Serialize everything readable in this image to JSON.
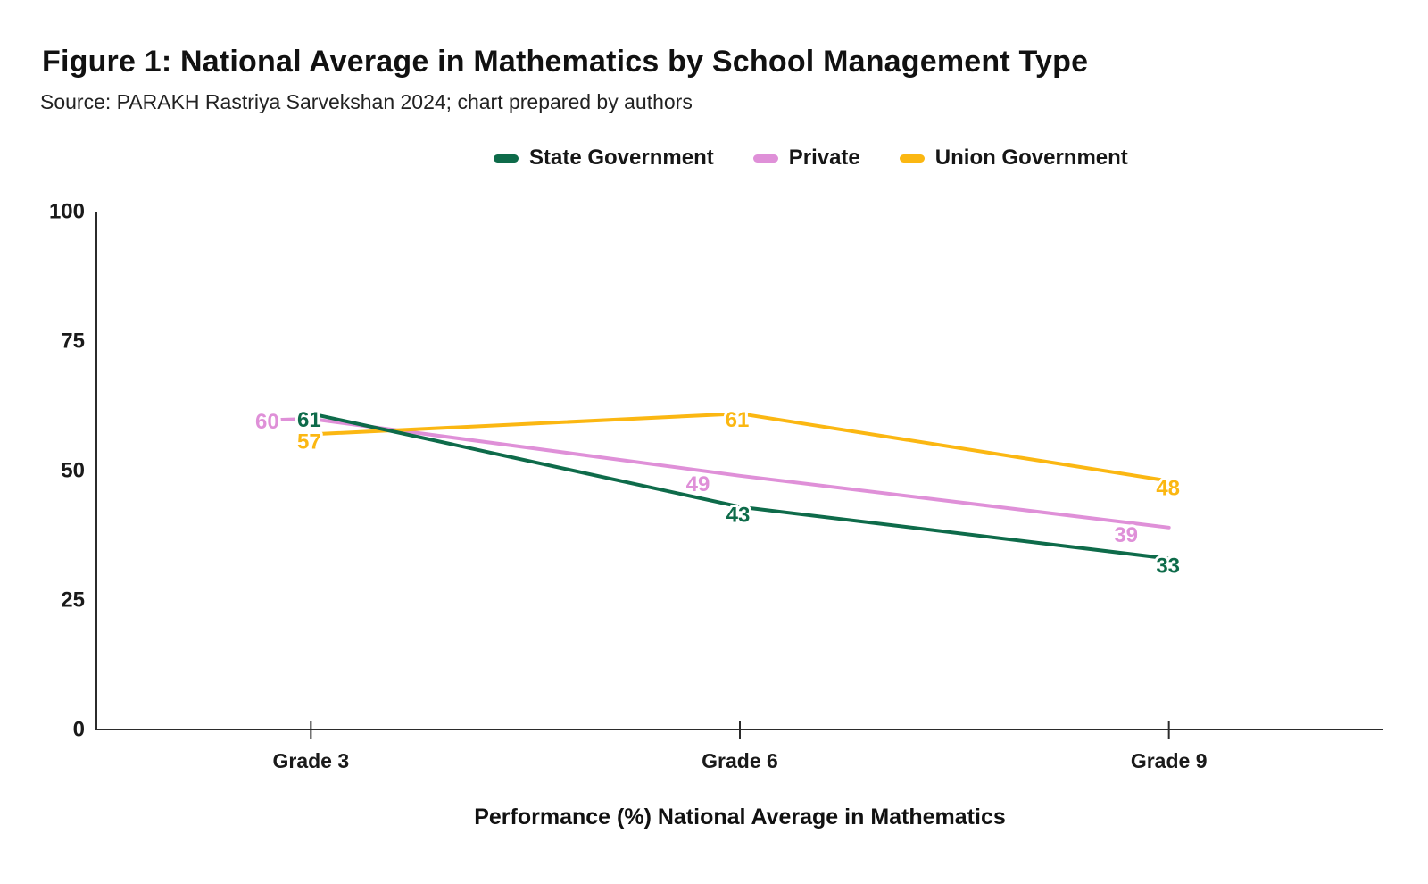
{
  "chart_data": {
    "type": "line",
    "title": "Figure 1: National Average in Mathematics by School Management Type",
    "source": "Source: PARAKH Rastriya Sarvekshan 2024; chart prepared by authors",
    "categories": [
      "Grade 3",
      "Grade 6",
      "Grade 9"
    ],
    "series": [
      {
        "name": "State Government",
        "color": "#0e6b4a",
        "values": [
          61,
          43,
          33
        ]
      },
      {
        "name": "Private",
        "color": "#df90d8",
        "values": [
          60,
          49,
          39
        ]
      },
      {
        "name": "Union Government",
        "color": "#fbb712",
        "values": [
          57,
          61,
          48
        ]
      }
    ],
    "xlabel": "Performance (%) National Average in Mathematics",
    "ylabel": "",
    "ylim": [
      0,
      100
    ],
    "yticks": [
      0,
      25,
      50,
      75,
      100
    ],
    "grid": false,
    "legend_position": "top",
    "data_labels": true,
    "axis_color": "#2b2b2b",
    "tick_label_color": "#1a1a1a",
    "background": "#ffffff"
  }
}
